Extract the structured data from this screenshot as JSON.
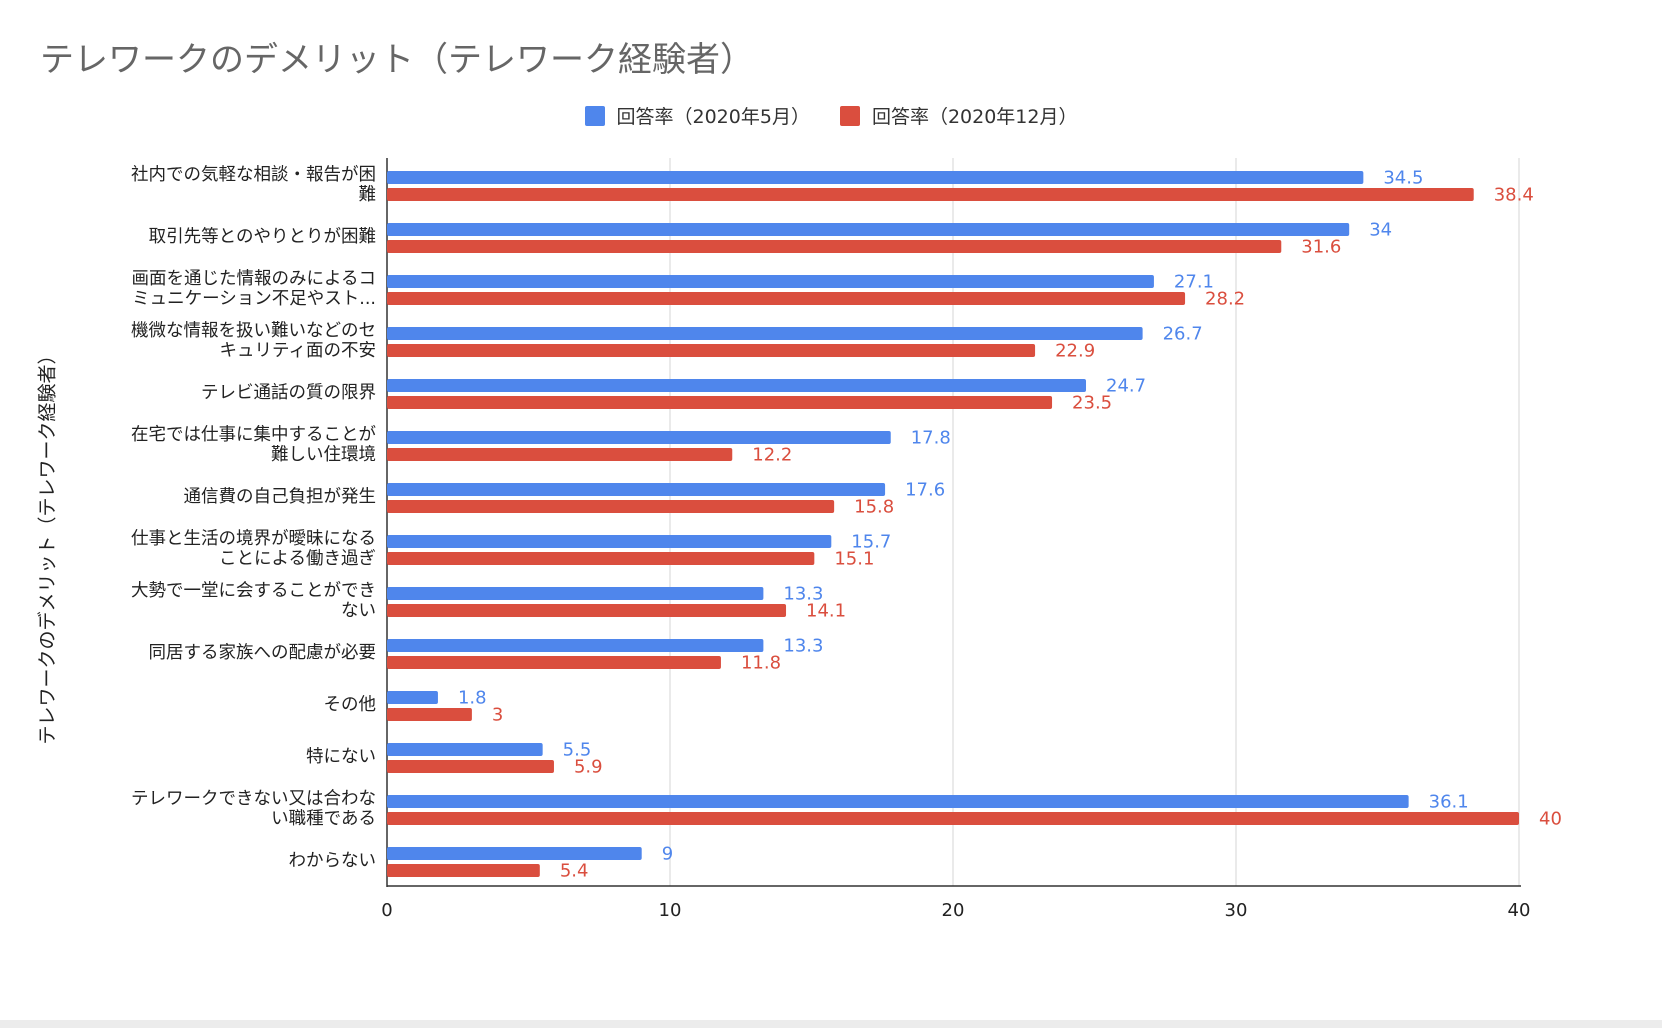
{
  "chart_data": {
    "type": "bar",
    "orientation": "horizontal",
    "title": "テレワークのデメリット（テレワーク経験者）",
    "ylabel": "テレワークのデメリット（テレワーク経験者）",
    "xlabel": "",
    "xlim": [
      0,
      40
    ],
    "xticks": [
      0,
      10,
      20,
      30,
      40
    ],
    "grid": true,
    "legend_position": "top",
    "categories": [
      [
        "社内での気軽な相談・報告が困",
        "難"
      ],
      [
        "取引先等とのやりとりが困難"
      ],
      [
        "画面を通じた情報のみによるコ",
        "ミュニケーション不足やスト..."
      ],
      [
        "機微な情報を扱い難いなどのセ",
        "キュリティ面の不安"
      ],
      [
        "テレビ通話の質の限界"
      ],
      [
        "在宅では仕事に集中することが",
        "難しい住環境"
      ],
      [
        "通信費の自己負担が発生"
      ],
      [
        "仕事と生活の境界が曖昧になる",
        "ことによる働き過ぎ"
      ],
      [
        "大勢で一堂に会することができ",
        "ない"
      ],
      [
        "同居する家族への配慮が必要"
      ],
      [
        "その他"
      ],
      [
        "特にない"
      ],
      [
        "テレワークできない又は合わな",
        "い職種である"
      ],
      [
        "わからない"
      ]
    ],
    "series": [
      {
        "name": "回答率（2020年5月）",
        "color": "#4f86ec",
        "values": [
          34.5,
          34,
          27.1,
          26.7,
          24.7,
          17.8,
          17.6,
          15.7,
          13.3,
          13.3,
          1.8,
          5.5,
          36.1,
          9
        ],
        "labels": [
          "34.5",
          "34",
          "27.1",
          "26.7",
          "24.7",
          "17.8",
          "17.6",
          "15.7",
          "13.3",
          "13.3",
          "1.8",
          "5.5",
          "36.1",
          "9"
        ]
      },
      {
        "name": "回答率（2020年12月）",
        "color": "#da4e3e",
        "values": [
          38.4,
          31.6,
          28.2,
          22.9,
          23.5,
          12.2,
          15.8,
          15.1,
          14.1,
          11.8,
          3,
          5.9,
          40,
          5.4
        ],
        "labels": [
          "38.4",
          "31.6",
          "28.2",
          "22.9",
          "23.5",
          "12.2",
          "15.8",
          "15.1",
          "14.1",
          "11.8",
          "3",
          "5.9",
          "40",
          "5.4"
        ]
      }
    ]
  }
}
